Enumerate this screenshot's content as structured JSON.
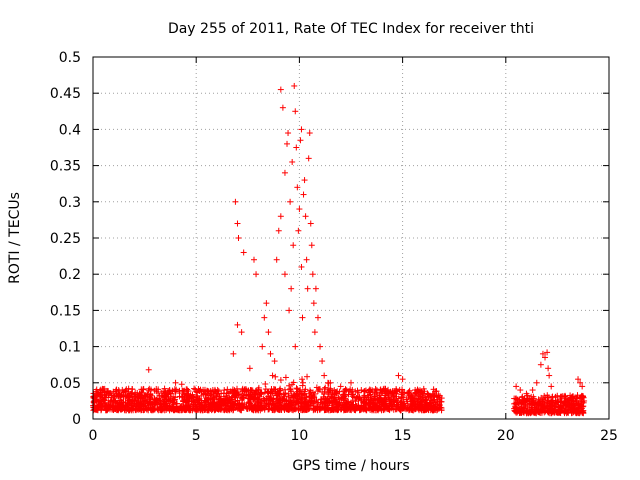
{
  "chart_data": {
    "type": "scatter",
    "title": "Day 255 of 2011, Rate Of TEC Index for receiver thti",
    "xlabel": "GPS time / hours",
    "ylabel": "ROTI / TECUs",
    "xlim": [
      0,
      25
    ],
    "ylim": [
      0,
      0.5
    ],
    "x_ticks": [
      0,
      5,
      10,
      15,
      20,
      25
    ],
    "x_tick_labels": [
      "0",
      "5",
      "10",
      "15",
      "20",
      "25"
    ],
    "y_ticks": [
      0,
      0.05,
      0.1,
      0.15,
      0.2,
      0.25,
      0.3,
      0.35,
      0.4,
      0.45,
      0.5
    ],
    "y_tick_labels": [
      "0",
      "0.05",
      "0.1",
      "0.15",
      "0.2",
      "0.25",
      "0.3",
      "0.35",
      "0.4",
      "0.45",
      "0.5"
    ],
    "grid": true,
    "marker": "+",
    "series": [
      {
        "name": "ROTI",
        "color": "#ff0000",
        "generation": "dense baseline scatter reconstructed from visual density",
        "background_segments": [
          {
            "x_start": 0.0,
            "x_end": 16.9,
            "base": 0.012,
            "spread": 0.03
          },
          {
            "x_start": 20.4,
            "x_end": 23.8,
            "base": 0.008,
            "spread": 0.025
          }
        ],
        "points": [
          [
            2.7,
            0.068
          ],
          [
            4.0,
            0.05
          ],
          [
            4.3,
            0.048
          ],
          [
            6.8,
            0.09
          ],
          [
            6.9,
            0.3
          ],
          [
            7.0,
            0.27
          ],
          [
            7.05,
            0.25
          ],
          [
            7.0,
            0.13
          ],
          [
            7.2,
            0.12
          ],
          [
            7.3,
            0.23
          ],
          [
            7.6,
            0.07
          ],
          [
            7.8,
            0.22
          ],
          [
            7.9,
            0.2
          ],
          [
            8.2,
            0.1
          ],
          [
            8.3,
            0.14
          ],
          [
            8.4,
            0.16
          ],
          [
            8.5,
            0.12
          ],
          [
            8.6,
            0.09
          ],
          [
            8.7,
            0.06
          ],
          [
            8.8,
            0.08
          ],
          [
            8.9,
            0.22
          ],
          [
            9.0,
            0.26
          ],
          [
            9.1,
            0.28
          ],
          [
            9.1,
            0.455
          ],
          [
            9.2,
            0.43
          ],
          [
            9.3,
            0.34
          ],
          [
            9.3,
            0.2
          ],
          [
            9.4,
            0.38
          ],
          [
            9.45,
            0.395
          ],
          [
            9.5,
            0.15
          ],
          [
            9.55,
            0.3
          ],
          [
            9.6,
            0.18
          ],
          [
            9.65,
            0.355
          ],
          [
            9.7,
            0.24
          ],
          [
            9.75,
            0.46
          ],
          [
            9.8,
            0.425
          ],
          [
            9.8,
            0.1
          ],
          [
            9.85,
            0.375
          ],
          [
            9.9,
            0.32
          ],
          [
            9.95,
            0.26
          ],
          [
            10.0,
            0.29
          ],
          [
            10.05,
            0.385
          ],
          [
            10.1,
            0.4
          ],
          [
            10.1,
            0.21
          ],
          [
            10.15,
            0.14
          ],
          [
            10.2,
            0.31
          ],
          [
            10.25,
            0.33
          ],
          [
            10.3,
            0.28
          ],
          [
            10.35,
            0.22
          ],
          [
            10.4,
            0.18
          ],
          [
            10.45,
            0.36
          ],
          [
            10.5,
            0.395
          ],
          [
            10.55,
            0.27
          ],
          [
            10.6,
            0.24
          ],
          [
            10.65,
            0.2
          ],
          [
            10.7,
            0.16
          ],
          [
            10.75,
            0.12
          ],
          [
            10.8,
            0.18
          ],
          [
            10.9,
            0.14
          ],
          [
            11.0,
            0.1
          ],
          [
            11.1,
            0.08
          ],
          [
            11.2,
            0.06
          ],
          [
            11.5,
            0.05
          ],
          [
            12.0,
            0.045
          ],
          [
            12.5,
            0.05
          ],
          [
            13.0,
            0.04
          ],
          [
            14.8,
            0.06
          ],
          [
            15.0,
            0.055
          ],
          [
            16.0,
            0.035
          ],
          [
            16.5,
            0.03
          ],
          [
            20.5,
            0.045
          ],
          [
            20.7,
            0.04
          ],
          [
            21.0,
            0.035
          ],
          [
            21.3,
            0.04
          ],
          [
            21.5,
            0.05
          ],
          [
            21.7,
            0.075
          ],
          [
            21.8,
            0.09
          ],
          [
            21.9,
            0.085
          ],
          [
            22.0,
            0.092
          ],
          [
            22.05,
            0.07
          ],
          [
            22.1,
            0.06
          ],
          [
            22.2,
            0.045
          ],
          [
            22.4,
            0.03
          ],
          [
            22.7,
            0.025
          ],
          [
            23.0,
            0.02
          ],
          [
            23.3,
            0.015
          ],
          [
            23.5,
            0.055
          ],
          [
            23.6,
            0.05
          ],
          [
            23.7,
            0.045
          ]
        ]
      }
    ]
  }
}
